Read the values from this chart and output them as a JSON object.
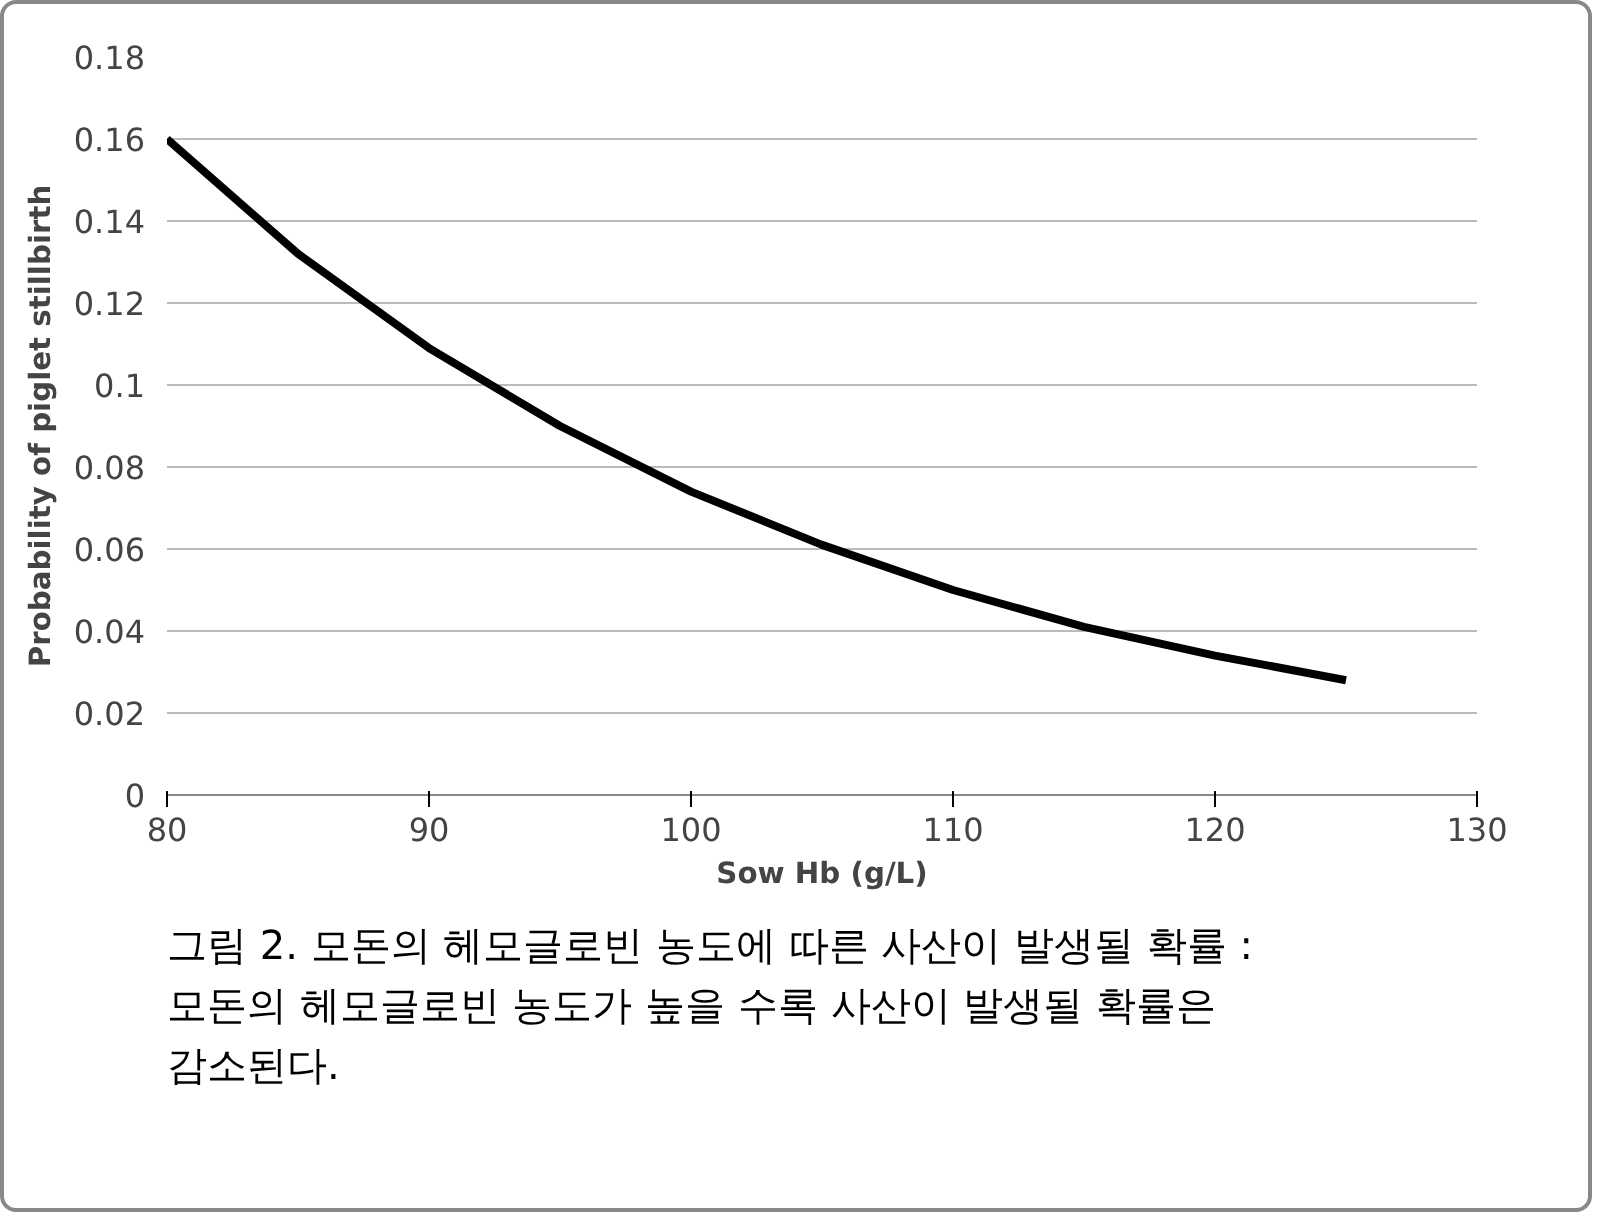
{
  "chart_data": {
    "type": "line",
    "xlabel": "Sow Hb (g/L)",
    "ylabel": "Probability of piglet stillbirth",
    "x": [
      80,
      85,
      90,
      95,
      100,
      105,
      110,
      115,
      120,
      125
    ],
    "series": [
      {
        "color": "#000000",
        "values": [
          0.16,
          0.132,
          0.109,
          0.09,
          0.074,
          0.061,
          0.05,
          0.041,
          0.034,
          0.028
        ]
      }
    ],
    "xlim": [
      80,
      130
    ],
    "xticks": [
      80,
      90,
      100,
      110,
      120,
      130
    ],
    "ylim": [
      0,
      0.18
    ],
    "yticks": [
      0,
      0.02,
      0.04,
      0.06,
      0.08,
      0.1,
      0.12,
      0.14,
      0.16,
      0.18
    ],
    "grid": "y",
    "marker": "none",
    "line_style": "solid",
    "annotations": [
      "그림 2. 모돈의 헤모글로빈 농도에 따른 사산이 발생될 확률 :\n모돈의 헤모글로빈 농도가 높을 수록 사산이 발생될 확률은\n감소된다."
    ]
  }
}
